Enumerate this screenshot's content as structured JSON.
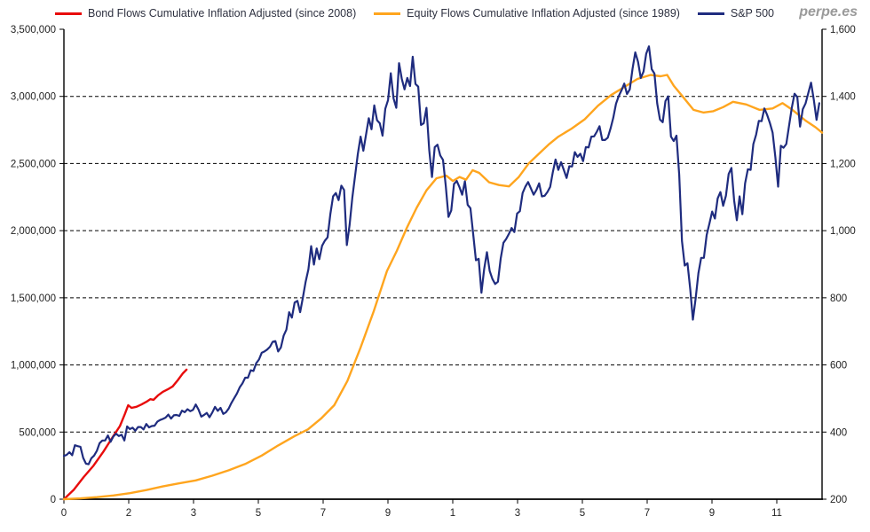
{
  "watermark": "perpe.es",
  "chart_data": {
    "type": "line",
    "title": "",
    "watermark": "perpe.es",
    "background": "#ffffff",
    "grid": {
      "show": true,
      "style": "dashed",
      "color": "#000000"
    },
    "axis_text_color": "#222222",
    "legend_text_color": "#2e3140",
    "legend_position": "top",
    "x_axis": {
      "range_years": [
        0,
        23
      ],
      "tick_interval_years": 2,
      "tick_labels": [
        "0",
        "2",
        "3",
        "5",
        "7",
        "9",
        "1",
        "3",
        "5",
        "7",
        "9",
        "11"
      ]
    },
    "y_axis_left": {
      "min": 0,
      "max": 3500000,
      "step": 500000,
      "tick_labels": [
        "0",
        "500,000",
        "1,000,000",
        "1,500,000",
        "2,000,000",
        "2,500,000",
        "3,000,000",
        "3,500,000"
      ]
    },
    "y_axis_right": {
      "min": 200,
      "max": 1600,
      "step": 200,
      "tick_labels": [
        "200",
        "400",
        "600",
        "800",
        "1,000",
        "1,200",
        "1,400",
        "1,600"
      ]
    },
    "series": [
      {
        "name": "Bond Flows Cumulative Inflation Adjusted (since 2008)",
        "color": "#e80c0c",
        "axis": "left",
        "width": 2.4,
        "points": [
          [
            0,
            0
          ],
          [
            0.3,
            70000
          ],
          [
            0.6,
            165000
          ],
          [
            0.9,
            250000
          ],
          [
            1.2,
            355000
          ],
          [
            1.5,
            470000
          ],
          [
            1.7,
            545000
          ],
          [
            1.85,
            635000
          ],
          [
            1.95,
            700000
          ],
          [
            2.05,
            680000
          ],
          [
            2.2,
            688000
          ],
          [
            2.35,
            705000
          ],
          [
            2.5,
            725000
          ],
          [
            2.62,
            745000
          ],
          [
            2.72,
            740000
          ],
          [
            2.85,
            772000
          ],
          [
            3.0,
            800000
          ],
          [
            3.15,
            818000
          ],
          [
            3.3,
            840000
          ],
          [
            3.45,
            885000
          ],
          [
            3.6,
            935000
          ],
          [
            3.72,
            965000
          ]
        ]
      },
      {
        "name": "Equity Flows Cumulative Inflation Adjusted (since 1989)",
        "color": "#ffa51e",
        "axis": "left",
        "width": 2.4,
        "points": [
          [
            0,
            0
          ],
          [
            0.5,
            6000
          ],
          [
            1,
            15000
          ],
          [
            1.5,
            28000
          ],
          [
            2,
            45000
          ],
          [
            2.5,
            68000
          ],
          [
            3,
            95000
          ],
          [
            3.5,
            118000
          ],
          [
            4,
            140000
          ],
          [
            4.5,
            175000
          ],
          [
            5,
            215000
          ],
          [
            5.5,
            262000
          ],
          [
            6,
            325000
          ],
          [
            6.5,
            400000
          ],
          [
            7,
            470000
          ],
          [
            7.4,
            520000
          ],
          [
            7.8,
            600000
          ],
          [
            8.2,
            700000
          ],
          [
            8.6,
            880000
          ],
          [
            9,
            1130000
          ],
          [
            9.4,
            1400000
          ],
          [
            9.8,
            1700000
          ],
          [
            10.1,
            1850000
          ],
          [
            10.4,
            2020000
          ],
          [
            10.7,
            2170000
          ],
          [
            11,
            2300000
          ],
          [
            11.3,
            2390000
          ],
          [
            11.6,
            2410000
          ],
          [
            11.8,
            2370000
          ],
          [
            12,
            2400000
          ],
          [
            12.2,
            2380000
          ],
          [
            12.4,
            2450000
          ],
          [
            12.6,
            2430000
          ],
          [
            12.9,
            2360000
          ],
          [
            13.2,
            2340000
          ],
          [
            13.5,
            2330000
          ],
          [
            13.8,
            2400000
          ],
          [
            14.1,
            2500000
          ],
          [
            14.4,
            2570000
          ],
          [
            14.7,
            2640000
          ],
          [
            15,
            2700000
          ],
          [
            15.4,
            2760000
          ],
          [
            15.8,
            2830000
          ],
          [
            16.2,
            2930000
          ],
          [
            16.6,
            3010000
          ],
          [
            17,
            3070000
          ],
          [
            17.4,
            3130000
          ],
          [
            17.8,
            3160000
          ],
          [
            18.1,
            3150000
          ],
          [
            18.3,
            3160000
          ],
          [
            18.5,
            3080000
          ],
          [
            18.8,
            2990000
          ],
          [
            19.1,
            2900000
          ],
          [
            19.4,
            2880000
          ],
          [
            19.7,
            2890000
          ],
          [
            20,
            2920000
          ],
          [
            20.3,
            2960000
          ],
          [
            20.7,
            2940000
          ],
          [
            21.1,
            2900000
          ],
          [
            21.5,
            2910000
          ],
          [
            21.8,
            2950000
          ],
          [
            22.1,
            2900000
          ],
          [
            22.5,
            2820000
          ],
          [
            22.8,
            2770000
          ],
          [
            23,
            2730000
          ]
        ]
      },
      {
        "name": "S&P 500",
        "color": "#1f2c7f",
        "axis": "right",
        "width": 2.2,
        "start_year": 0,
        "interval_years": 0.08333,
        "values": [
          329,
          332,
          340,
          331,
          361,
          358,
          356,
          323,
          306,
          304,
          322,
          330,
          344,
          367,
          375,
          375,
          390,
          371,
          387,
          395,
          388,
          392,
          375,
          417,
          409,
          413,
          404,
          415,
          415,
          408,
          424,
          414,
          418,
          419,
          431,
          436,
          439,
          443,
          452,
          440,
          450,
          451,
          448,
          464,
          459,
          468,
          462,
          466,
          482,
          467,
          446,
          451,
          457,
          444,
          458,
          475,
          463,
          472,
          454,
          459,
          470,
          487,
          501,
          515,
          533,
          545,
          562,
          562,
          584,
          582,
          605,
          616,
          636,
          640,
          646,
          654,
          669,
          671,
          640,
          652,
          687,
          705,
          757,
          741,
          786,
          791,
          757,
          801,
          848,
          885,
          954,
          899,
          947,
          915,
          955,
          970,
          980,
          1049,
          1102,
          1112,
          1091,
          1134,
          1121,
          957,
          1017,
          1099,
          1164,
          1229,
          1280,
          1238,
          1286,
          1335,
          1302,
          1373,
          1329,
          1320,
          1283,
          1363,
          1389,
          1469,
          1394,
          1366,
          1499,
          1452,
          1421,
          1455,
          1431,
          1518,
          1437,
          1429,
          1315,
          1320,
          1366,
          1240,
          1160,
          1249,
          1256,
          1224,
          1211,
          1134,
          1041,
          1060,
          1139,
          1148,
          1130,
          1107,
          1147,
          1077,
          1067,
          990,
          912,
          916,
          815,
          886,
          936,
          880,
          856,
          841,
          848,
          917,
          964,
          975,
          990,
          1008,
          996,
          1051,
          1058,
          1112,
          1131,
          1145,
          1126,
          1107,
          1121,
          1141,
          1102,
          1104,
          1115,
          1130,
          1174,
          1212,
          1181,
          1204,
          1181,
          1157,
          1192,
          1191,
          1234,
          1220,
          1229,
          1207,
          1249,
          1248,
          1280,
          1281,
          1295,
          1311,
          1270,
          1270,
          1277,
          1304,
          1336,
          1378,
          1401,
          1418,
          1438,
          1407,
          1421,
          1482,
          1531,
          1503,
          1455,
          1474,
          1527,
          1549,
          1481,
          1468,
          1379,
          1331,
          1323,
          1386,
          1400,
          1280,
          1267,
          1283,
          1166,
          969,
          896,
          903,
          826,
          735,
          798,
          873,
          919,
          919,
          987,
          1021,
          1057,
          1036,
          1096,
          1115,
          1074,
          1104,
          1169,
          1187,
          1089,
          1031,
          1102,
          1049,
          1141,
          1183,
          1181,
          1258,
          1286,
          1327,
          1326,
          1364,
          1345,
          1321,
          1292,
          1219,
          1131,
          1253,
          1247,
          1258,
          1312,
          1366,
          1408,
          1398,
          1310,
          1362,
          1379,
          1410,
          1441,
          1390,
          1330,
          1380
        ]
      }
    ]
  }
}
